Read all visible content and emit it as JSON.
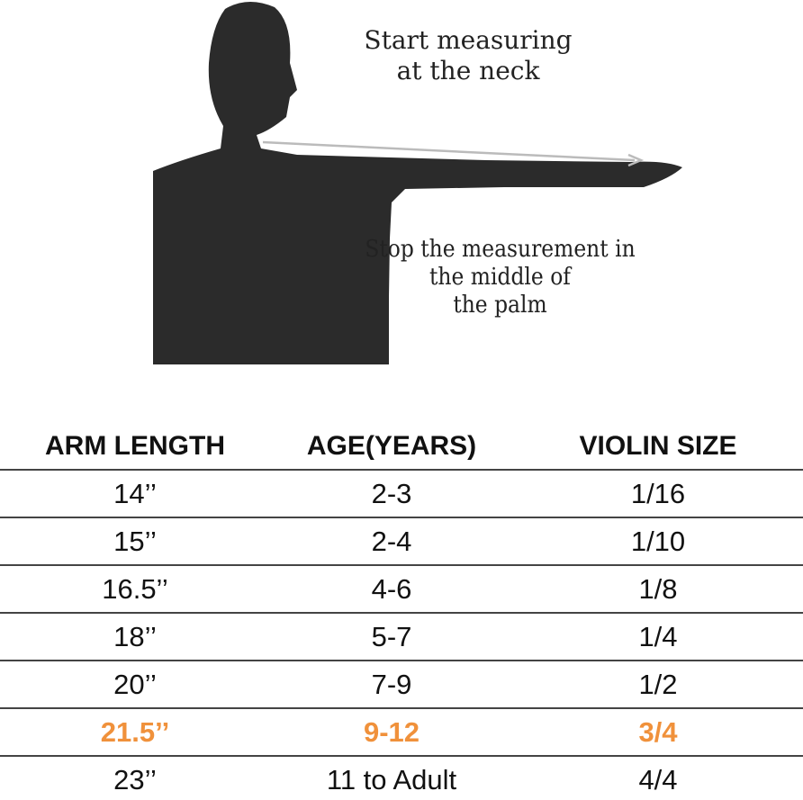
{
  "illustration": {
    "note_start": [
      "Start measuring",
      "at the neck"
    ],
    "note_stop": [
      "Stop the measurement in",
      "the middle of",
      "the palm"
    ]
  },
  "table": {
    "headers": [
      "ARM LENGTH",
      "AGE(YEARS)",
      "VIOLIN SIZE"
    ],
    "rows": [
      [
        "14’’",
        "2-3",
        "1/16"
      ],
      [
        "15’’",
        "2-4",
        "1/10"
      ],
      [
        "16.5’’",
        "4-6",
        "1/8"
      ],
      [
        "18’’",
        "5-7",
        "1/4"
      ],
      [
        "20’’",
        "7-9",
        "1/2"
      ],
      [
        "21.5’’",
        "9-12",
        "3/4"
      ],
      [
        "23’’",
        "11 to Adult",
        "4/4"
      ]
    ],
    "highlight_row": 5,
    "highlight_color": "#f0913b"
  }
}
